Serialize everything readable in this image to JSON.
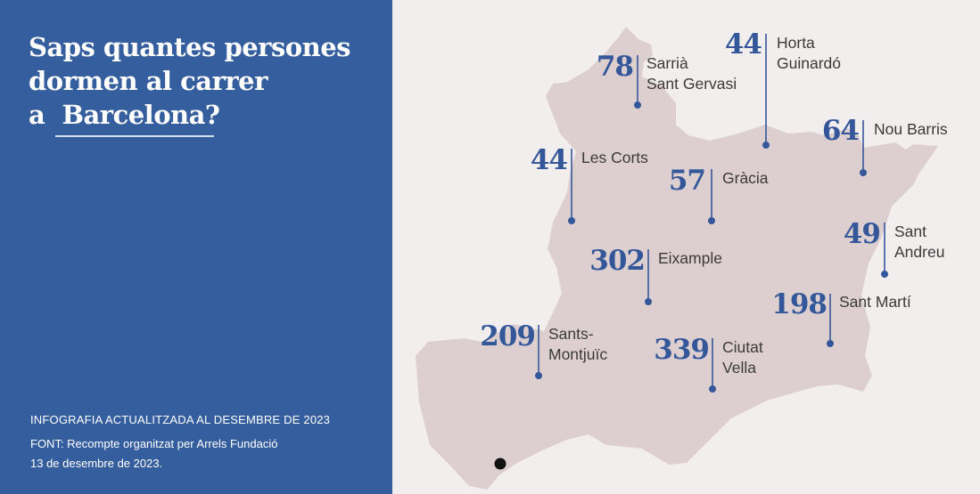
{
  "title": {
    "lines": [
      "Saps quantes persones",
      "dormen al carrer",
      "a  Barcelona?"
    ]
  },
  "footer": {
    "updated": "INFOGRAFIA ACTUALITZADA AL DESEMBRE DE 2023",
    "source": "FONT: Recompte organitzat per Arrels Fundació",
    "date": "13 de desembre de 2023."
  },
  "colors": {
    "panel": "#355e9e",
    "number": "#34579a",
    "land": "#ddcfd0",
    "background": "#f3eeee",
    "leader": "#34579a"
  },
  "districts": [
    {
      "count": "78",
      "name_lines": [
        "Sarrià",
        "Sant Gervasi"
      ]
    },
    {
      "count": "44",
      "name_lines": [
        "Horta",
        "Guinardó"
      ]
    },
    {
      "count": "64",
      "name_lines": [
        "Nou Barris"
      ]
    },
    {
      "count": "44",
      "name_lines": [
        "Les Corts"
      ]
    },
    {
      "count": "57",
      "name_lines": [
        "Gràcia"
      ]
    },
    {
      "count": "49",
      "name_lines": [
        "Sant",
        "Andreu"
      ]
    },
    {
      "count": "302",
      "name_lines": [
        "Eixample"
      ]
    },
    {
      "count": "198",
      "name_lines": [
        "Sant Martí"
      ]
    },
    {
      "count": "209",
      "name_lines": [
        "Sants-",
        "Montjuïc"
      ]
    },
    {
      "count": "339",
      "name_lines": [
        "Ciutat",
        "Vella"
      ]
    }
  ]
}
